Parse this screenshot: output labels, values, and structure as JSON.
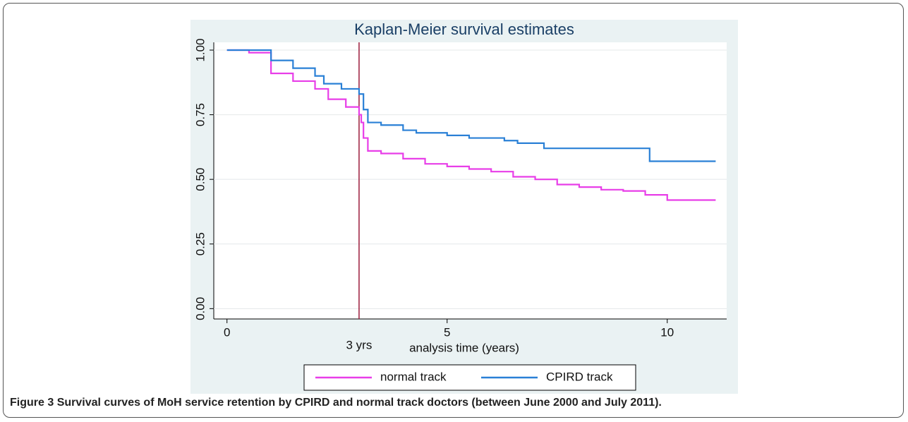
{
  "chart_data": {
    "type": "line",
    "step": "post",
    "title": "Kaplan-Meier survival estimates",
    "x_label": "analysis time (years)",
    "xlim": [
      -0.3,
      11.35
    ],
    "xticks": [
      0,
      5,
      10
    ],
    "ylim": [
      -0.04,
      1.03
    ],
    "yticks": [
      {
        "value": 0,
        "label": "0.00"
      },
      {
        "value": 0.25,
        "label": "0.25"
      },
      {
        "value": 0.5,
        "label": "0.50"
      },
      {
        "value": 0.75,
        "label": "0.75"
      },
      {
        "value": 1,
        "label": "1.00"
      }
    ],
    "grid": true,
    "legend": "bottom",
    "reference_line": {
      "x": 3,
      "label": "3 yrs",
      "color": "#9b1b3a"
    },
    "series": [
      {
        "name": "normal track",
        "color": "#e83ee8",
        "x": [
          0,
          0.5,
          1.0,
          1.5,
          2.0,
          2.3,
          2.7,
          3.0,
          3.05,
          3.1,
          3.2,
          3.5,
          4.0,
          4.5,
          5.0,
          5.5,
          6.0,
          6.5,
          7.0,
          7.5,
          8.0,
          8.5,
          9.0,
          9.5,
          10.0,
          11.1
        ],
        "values": [
          1.0,
          0.99,
          0.91,
          0.88,
          0.85,
          0.81,
          0.78,
          0.75,
          0.72,
          0.66,
          0.61,
          0.6,
          0.58,
          0.56,
          0.55,
          0.54,
          0.53,
          0.51,
          0.5,
          0.48,
          0.47,
          0.46,
          0.455,
          0.44,
          0.42,
          0.42
        ]
      },
      {
        "name": "CPIRD track",
        "color": "#2a80d6",
        "x": [
          0,
          1.0,
          1.5,
          2.0,
          2.2,
          2.6,
          3.0,
          3.1,
          3.2,
          3.5,
          4.0,
          4.3,
          5.0,
          5.5,
          6.3,
          6.6,
          7.2,
          9.6,
          11.1
        ],
        "values": [
          1.0,
          0.96,
          0.93,
          0.9,
          0.87,
          0.85,
          0.83,
          0.77,
          0.72,
          0.71,
          0.69,
          0.68,
          0.67,
          0.66,
          0.65,
          0.64,
          0.62,
          0.57,
          0.57
        ]
      }
    ]
  },
  "figure_label": "Figure 3",
  "caption": "Survival curves of MoH service retention by CPIRD and normal track doctors (between June 2000 and July 2011)."
}
